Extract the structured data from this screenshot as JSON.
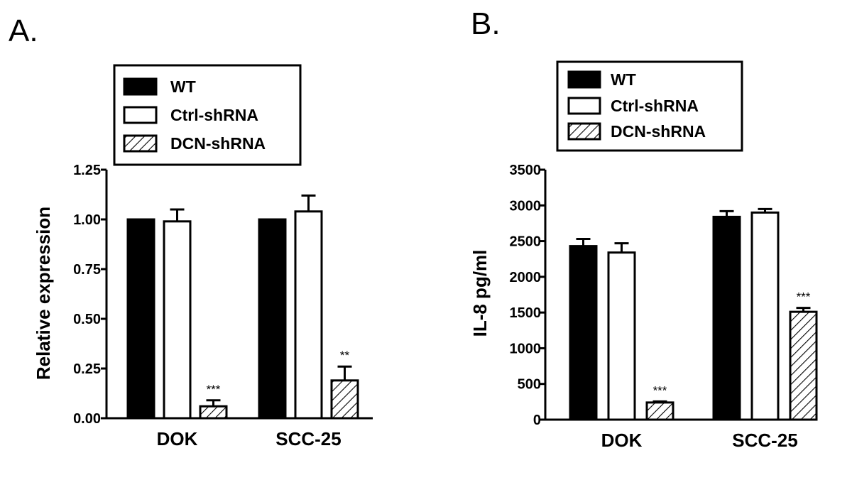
{
  "chart_data": [
    {
      "panel": "A.",
      "type": "bar",
      "ylabel": "Relative expression",
      "xlabel": "",
      "categories": [
        "DOK",
        "SCC-25"
      ],
      "ylim": [
        0,
        1.25
      ],
      "yticks": [
        "0.00",
        "0.25",
        "0.50",
        "0.75",
        "1.00",
        "1.25"
      ],
      "legend_position": "top",
      "series": [
        {
          "name": "WT",
          "fill": "solid",
          "values": [
            1.0,
            1.0
          ],
          "errors": [
            0,
            0
          ]
        },
        {
          "name": "Ctrl-shRNA",
          "fill": "open",
          "values": [
            0.99,
            1.04
          ],
          "errors": [
            0.06,
            0.08
          ]
        },
        {
          "name": "DCN-shRNA",
          "fill": "hatched",
          "values": [
            0.06,
            0.19
          ],
          "errors": [
            0.03,
            0.07
          ]
        }
      ],
      "annotations": [
        {
          "series": 2,
          "category": 0,
          "text": "***"
        },
        {
          "series": 2,
          "category": 1,
          "text": "**"
        }
      ]
    },
    {
      "panel": "B.",
      "type": "bar",
      "ylabel": "IL-8 pg/ml",
      "xlabel": "",
      "categories": [
        "DOK",
        "SCC-25"
      ],
      "ylim": [
        0,
        3500
      ],
      "yticks": [
        "0",
        "500",
        "1000",
        "1500",
        "2000",
        "2500",
        "3000",
        "3500"
      ],
      "legend_position": "top",
      "series": [
        {
          "name": "WT",
          "fill": "solid",
          "values": [
            2430,
            2840
          ],
          "errors": [
            100,
            80
          ]
        },
        {
          "name": "Ctrl-shRNA",
          "fill": "open",
          "values": [
            2340,
            2900
          ],
          "errors": [
            130,
            50
          ]
        },
        {
          "name": "DCN-shRNA",
          "fill": "hatched",
          "values": [
            240,
            1510
          ],
          "errors": [
            15,
            55
          ]
        }
      ],
      "annotations": [
        {
          "series": 2,
          "category": 0,
          "text": "***"
        },
        {
          "series": 2,
          "category": 1,
          "text": "***"
        }
      ]
    }
  ]
}
